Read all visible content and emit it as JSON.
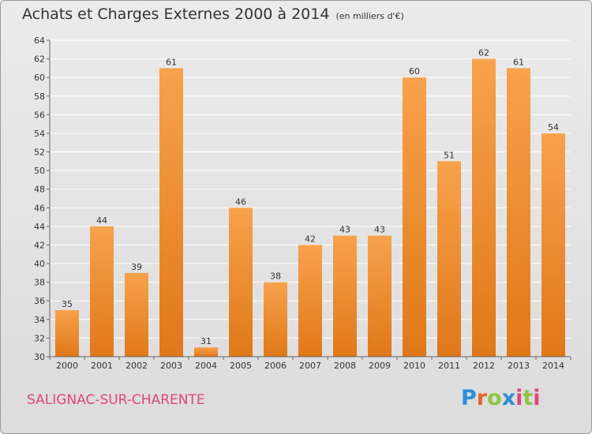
{
  "header": {
    "title": "Achats et Charges Externes 2000 à 2014",
    "unit": "(en milliers d'€)"
  },
  "footer": {
    "commune": "SALIGNAC-SUR-CHARENTE",
    "logo_text": "Proxiti"
  },
  "colors": {
    "bar_light": "#f7a24c",
    "bar_dark": "#e07818",
    "title": "#333333",
    "commune": "#e0457b",
    "logo_letters": [
      "#2b8fd6",
      "#e8642c",
      "#8cc63f",
      "#2b8fd6",
      "#e0457b",
      "#8cc63f",
      "#e0457b"
    ]
  },
  "chart_data": {
    "type": "bar",
    "title": "Achats et Charges Externes 2000 à 2014",
    "subtitle": "(en milliers d'€)",
    "categories": [
      "2000",
      "2001",
      "2002",
      "2003",
      "2004",
      "2005",
      "2006",
      "2007",
      "2008",
      "2009",
      "2010",
      "2011",
      "2012",
      "2013",
      "2014"
    ],
    "values": [
      35,
      44,
      39,
      61,
      31,
      46,
      38,
      42,
      43,
      43,
      60,
      51,
      62,
      61,
      54
    ],
    "ylim": [
      30,
      64
    ],
    "yticks": [
      30,
      32,
      34,
      36,
      38,
      40,
      42,
      44,
      46,
      48,
      50,
      52,
      54,
      56,
      58,
      60,
      62,
      64
    ],
    "grid": true,
    "data_labels": true
  }
}
